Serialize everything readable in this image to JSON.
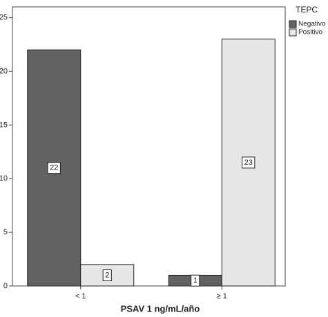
{
  "chart_data": {
    "type": "bar",
    "x_label": "PSAV 1 ng/mL/año",
    "legend_title": "TEPC",
    "categories": [
      "< 1",
      "≥ 1"
    ],
    "series": [
      {
        "name": "Negativo",
        "color": "#626262",
        "values": [
          22,
          1
        ]
      },
      {
        "name": "Positivo",
        "color": "#e6e6e6",
        "values": [
          2,
          23
        ]
      }
    ],
    "ylim": [
      0,
      26
    ],
    "yticks": [
      0,
      5,
      10,
      15,
      20,
      25
    ],
    "grid": false,
    "legend_position": "right"
  }
}
